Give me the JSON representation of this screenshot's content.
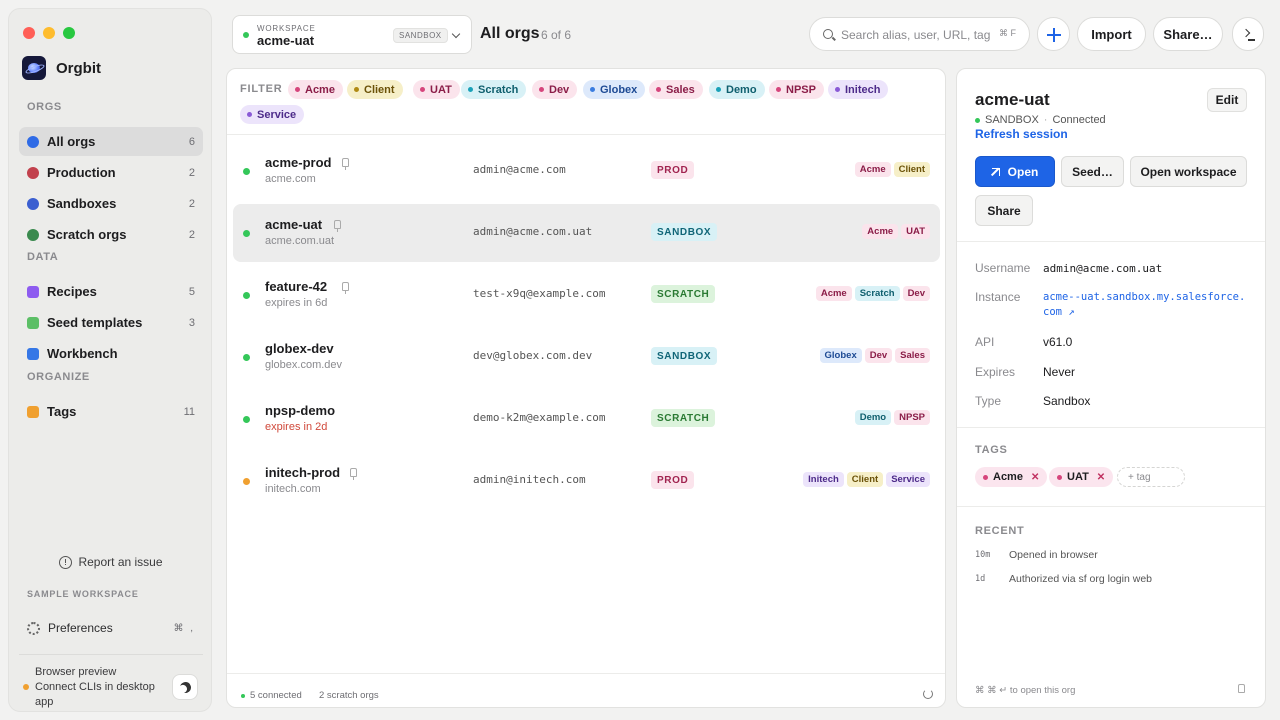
{
  "window": {
    "controls": [
      "close",
      "minimize",
      "maximize"
    ]
  },
  "brand": {
    "name": "Orgbit"
  },
  "sidebar": {
    "sections": [
      {
        "label": "ORGS"
      },
      {
        "label": "DATA"
      },
      {
        "label": "ORGANIZE"
      }
    ],
    "orgs": [
      {
        "label": "All orgs",
        "count": "6",
        "color": "#2f6be6",
        "active": true
      },
      {
        "label": "Production",
        "count": "2",
        "color": "#c2414d"
      },
      {
        "label": "Sandboxes",
        "count": "2",
        "color": "#3b5fd0"
      },
      {
        "label": "Scratch orgs",
        "count": "2",
        "color": "#3a8a4e"
      }
    ],
    "data": [
      {
        "label": "Recipes",
        "count": "5",
        "color": "#8e5cf0"
      },
      {
        "label": "Seed templates",
        "count": "3",
        "color": "#5cbf66"
      },
      {
        "label": "Workbench",
        "count": "",
        "color": "#3577e6"
      }
    ],
    "organize": [
      {
        "label": "Tags",
        "count": "11",
        "color": "#f0a030"
      }
    ],
    "report": "Report an issue",
    "sample_workspace": "SAMPLE WORKSPACE",
    "preferences": "Preferences",
    "preferences_shortcut": "⌘ ,",
    "preview_line1": "Browser preview",
    "preview_line2": "Connect CLIs in desktop app"
  },
  "header": {
    "workspace_label": "WORKSPACE",
    "workspace_value": "acme-uat",
    "workspace_badge": "SANDBOX",
    "title": "All orgs",
    "count": "6 of 6",
    "search_placeholder": "Search alias, user, URL, tag",
    "search_shortcut": "⌘ F",
    "import": "Import",
    "share": "Share…"
  },
  "filter": {
    "label": "FILTER",
    "chips": [
      {
        "label": "Acme",
        "bg": "#fbe4ec",
        "dot": "#d6457c",
        "fg": "#8b1d48"
      },
      {
        "label": "Client",
        "bg": "#f6efc8",
        "dot": "#b08a14",
        "fg": "#6b5208"
      },
      {
        "label": "UAT",
        "bg": "#fbe4ec",
        "dot": "#d6457c",
        "fg": "#8b1d48"
      },
      {
        "label": "Scratch",
        "bg": "#d8f1f6",
        "dot": "#1aa1b8",
        "fg": "#0f5f6e"
      },
      {
        "label": "Dev",
        "bg": "#fbe4ec",
        "dot": "#d6457c",
        "fg": "#8b1d48"
      },
      {
        "label": "Globex",
        "bg": "#dde9fb",
        "dot": "#3a7de0",
        "fg": "#1d4a94"
      },
      {
        "label": "Sales",
        "bg": "#fbe4ec",
        "dot": "#d6457c",
        "fg": "#8b1d48"
      },
      {
        "label": "Demo",
        "bg": "#d8f1f6",
        "dot": "#1aa1b8",
        "fg": "#0f5f6e"
      },
      {
        "label": "NPSP",
        "bg": "#fbe4ec",
        "dot": "#d6457c",
        "fg": "#8b1d48"
      },
      {
        "label": "Initech",
        "bg": "#ece4fb",
        "dot": "#8a5ad6",
        "fg": "#4d2b8a"
      },
      {
        "label": "Service",
        "bg": "#ece4fb",
        "dot": "#8a5ad6",
        "fg": "#4d2b8a"
      }
    ]
  },
  "orgs": [
    {
      "name": "acme-prod",
      "sub": "acme.com",
      "user": "admin@acme.com",
      "type": "PROD",
      "status_color": "#34c759",
      "pinned": true,
      "tags": [
        "Acme",
        "Client"
      ]
    },
    {
      "name": "acme-uat",
      "sub": "acme.com.uat",
      "user": "admin@acme.com.uat",
      "type": "SANDBOX",
      "status_color": "#34c759",
      "pinned": true,
      "selected": true,
      "tags": [
        "Acme",
        "UAT"
      ]
    },
    {
      "name": "feature-42",
      "sub": "expires in 6d",
      "user": "test-x9q@example.com",
      "type": "SCRATCH",
      "status_color": "#34c759",
      "pinned": true,
      "tags": [
        "Acme",
        "Scratch",
        "Dev"
      ]
    },
    {
      "name": "globex-dev",
      "sub": "globex.com.dev",
      "user": "dev@globex.com.dev",
      "type": "SANDBOX",
      "status_color": "#34c759",
      "tags": [
        "Globex",
        "Dev",
        "Sales"
      ]
    },
    {
      "name": "npsp-demo",
      "sub": "expires in 2d",
      "sub_warn": true,
      "user": "demo-k2m@example.com",
      "type": "SCRATCH",
      "status_color": "#34c759",
      "tags": [
        "Demo",
        "NPSP"
      ]
    },
    {
      "name": "initech-prod",
      "sub": "initech.com",
      "user": "admin@initech.com",
      "type": "PROD",
      "status_color": "#f0a030",
      "pinned": true,
      "tags": [
        "Initech",
        "Client",
        "Service"
      ]
    }
  ],
  "type_styles": {
    "PROD": {
      "bg": "#fbe4ec",
      "fg": "#a0234f"
    },
    "SANDBOX": {
      "bg": "#d8f1f6",
      "fg": "#0f6577"
    },
    "SCRATCH": {
      "bg": "#dcf3dc",
      "fg": "#2a7a33"
    }
  },
  "status_bar": {
    "connected": "5 connected",
    "scratch": "2 scratch orgs"
  },
  "detail": {
    "title": "acme-uat",
    "edit": "Edit",
    "type": "SANDBOX",
    "connection": "Connected",
    "refresh": "Refresh session",
    "actions": {
      "open": "Open",
      "seed": "Seed…",
      "workspace": "Open workspace",
      "share": "Share"
    },
    "fields": {
      "username_label": "Username",
      "username": "admin@acme.com.uat",
      "instance_label": "Instance",
      "instance": "acme--uat.sandbox.my.salesforce.com ↗",
      "api_label": "API",
      "api": "v61.0",
      "expires_label": "Expires",
      "expires": "Never",
      "type_label": "Type",
      "type": "Sandbox"
    },
    "tags_label": "TAGS",
    "tags": [
      "Acme",
      "UAT"
    ],
    "tag_placeholder": "+ tag",
    "recent_label": "RECENT",
    "recent": [
      {
        "time": "10m",
        "text": "Opened in browser"
      },
      {
        "time": "1d",
        "text": "Authorized via sf org login web"
      }
    ],
    "footer_hint": "⌘ ⌘ ↵ to open this org"
  }
}
